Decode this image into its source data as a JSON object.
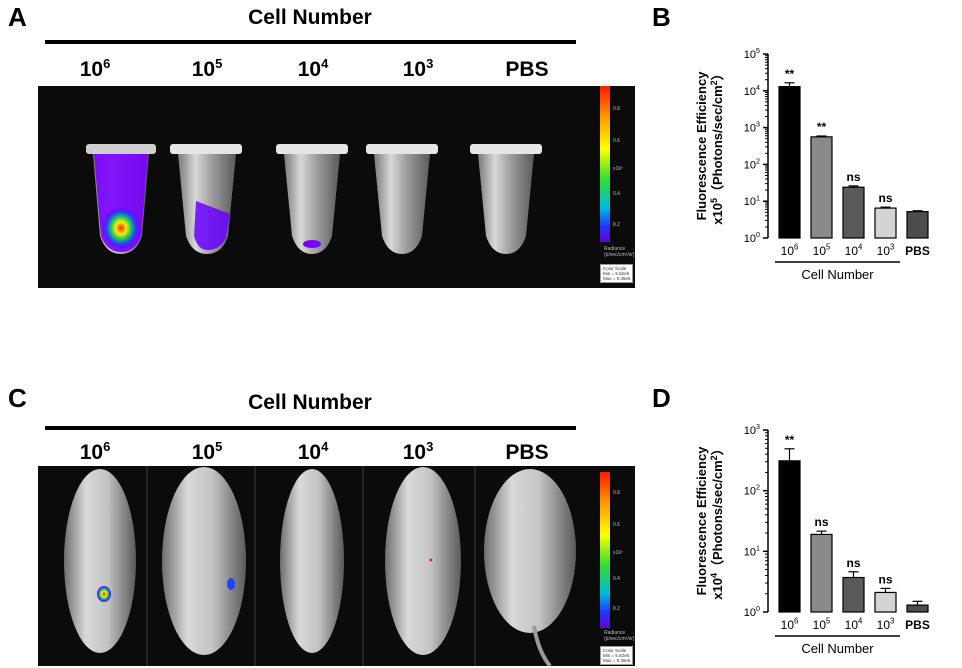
{
  "panels": {
    "A": {
      "letter": "A",
      "header": "Cell Number",
      "column_labels": [
        "10",
        "10",
        "10",
        "10",
        "PBS"
      ],
      "column_exponents": [
        "6",
        "5",
        "4",
        "3",
        ""
      ]
    },
    "B": {
      "letter": "B"
    },
    "C": {
      "letter": "C",
      "header": "Cell Number",
      "column_labels": [
        "10",
        "10",
        "10",
        "10",
        "PBS"
      ],
      "column_exponents": [
        "6",
        "5",
        "4",
        "3",
        ""
      ]
    },
    "D": {
      "letter": "D"
    }
  },
  "colorscale": {
    "ticks": [
      "0.8",
      "0.6",
      "x10⁷",
      "0.4",
      "0.2"
    ],
    "radiance_label": "Radiance",
    "radiance_unit": "(p/sec/cm²/sr)",
    "box_lines": [
      "Color Scale",
      "Min = 5.82e5",
      "Max = 9.36e6"
    ]
  },
  "colors": {
    "bar_black": "#000000",
    "bar_gray": "#8a8a8a",
    "bar_dark": "#5a5a5a",
    "bar_light": "#d4d4d4",
    "bar_pbs": "#4d4d4d"
  },
  "chart_data": [
    {
      "type": "bar",
      "panel": "B",
      "ylabel_line1": "Fluorescence Efficiency",
      "ylabel_line2_prefix": "x10",
      "ylabel_line2_exp": "5",
      "ylabel_line2_suffix": "（Photons/sec/cm",
      "ylabel_line2_tail": "2",
      "ylabel_line2_end": "）",
      "xlabel": "Cell Number",
      "yscale": "log",
      "ylim": [
        1,
        100000
      ],
      "yticks": [
        "10",
        "10",
        "10",
        "10",
        "10",
        "10"
      ],
      "ytick_exponents": [
        "0",
        "1",
        "2",
        "3",
        "4",
        "5"
      ],
      "categories": [
        "10",
        "10",
        "10",
        "10",
        "PBS"
      ],
      "category_exponents": [
        "6",
        "5",
        "4",
        "3",
        ""
      ],
      "values": [
        13000,
        560,
        24,
        6.5,
        5.2
      ],
      "errors": [
        3500,
        30,
        2,
        0.4,
        0.3
      ],
      "annotations": [
        "**",
        "**",
        "ns",
        "ns",
        ""
      ]
    },
    {
      "type": "bar",
      "panel": "D",
      "ylabel_line1": "Fluorescence Efficiency",
      "ylabel_line2_prefix": "x10",
      "ylabel_line2_exp": "4",
      "ylabel_line2_suffix": "（Photons/sec/cm",
      "ylabel_line2_tail": "2",
      "ylabel_line2_end": "）",
      "xlabel": "Cell Number",
      "yscale": "log",
      "ylim": [
        1,
        1000
      ],
      "yticks": [
        "10",
        "10",
        "10",
        "10"
      ],
      "ytick_exponents": [
        "0",
        "1",
        "2",
        "3"
      ],
      "categories": [
        "10",
        "10",
        "10",
        "10",
        "PBS"
      ],
      "category_exponents": [
        "6",
        "5",
        "4",
        "3",
        ""
      ],
      "values": [
        310,
        19,
        3.7,
        2.1,
        1.3
      ],
      "errors": [
        180,
        2.5,
        0.9,
        0.35,
        0.2
      ],
      "annotations": [
        "**",
        "ns",
        "ns",
        "ns",
        ""
      ]
    }
  ]
}
